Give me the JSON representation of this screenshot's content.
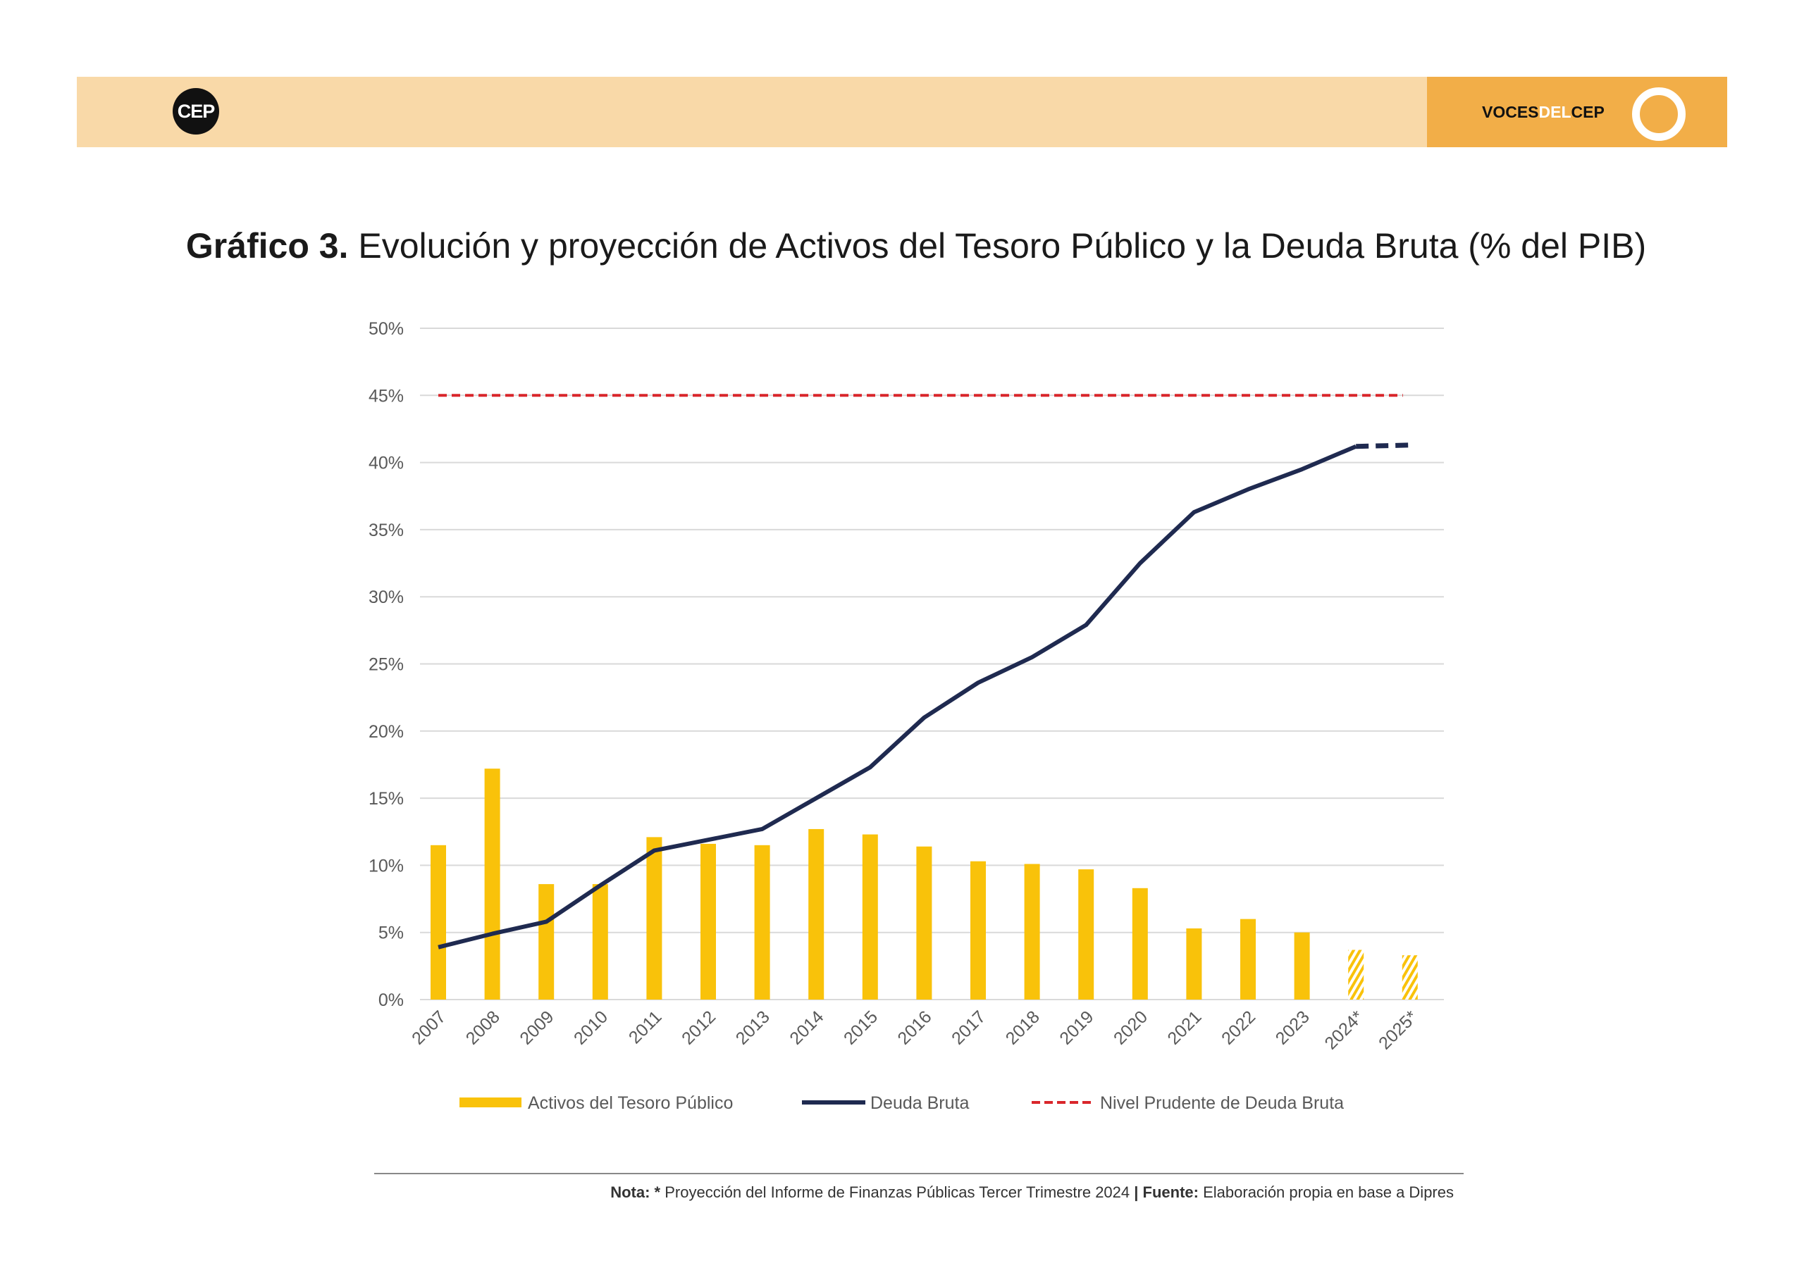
{
  "header": {
    "logo_text": "CEP",
    "brand_part1": "VOCES",
    "brand_part2": "DEL",
    "brand_part3": "CEP",
    "band_color": "#f9d9a8",
    "brand_color": "#f2ae48"
  },
  "title": {
    "label": "Gráfico 3.",
    "text": "Evolución y proyección de Activos del Tesoro Público y la Deuda Bruta (% del PIB)"
  },
  "chart_data": {
    "type": "bar+line",
    "categories": [
      "2007",
      "2008",
      "2009",
      "2010",
      "2011",
      "2012",
      "2013",
      "2014",
      "2015",
      "2016",
      "2017",
      "2018",
      "2019",
      "2020",
      "2021",
      "2022",
      "2023",
      "2024*",
      "2025*"
    ],
    "yticks": [
      "0%",
      "5%",
      "10%",
      "15%",
      "20%",
      "25%",
      "30%",
      "35%",
      "40%",
      "45%",
      "50%"
    ],
    "ylim": [
      0,
      50
    ],
    "grid": true,
    "legend_position": "bottom",
    "series": [
      {
        "name": "Activos del Tesoro Público",
        "type": "bar",
        "color": "#f9c20a",
        "values": [
          11.5,
          17.2,
          8.6,
          8.6,
          12.1,
          11.6,
          11.5,
          12.7,
          12.3,
          11.4,
          10.3,
          10.1,
          9.7,
          8.3,
          5.3,
          6.0,
          5.0,
          3.7,
          3.3
        ],
        "projected_from": "2024*"
      },
      {
        "name": "Deuda Bruta",
        "type": "line",
        "color": "#1f2a50",
        "values": [
          3.9,
          4.9,
          5.8,
          8.5,
          11.1,
          11.9,
          12.7,
          15.0,
          17.3,
          21.0,
          23.6,
          25.5,
          27.9,
          32.5,
          36.3,
          38.0,
          39.5,
          41.2,
          41.3
        ],
        "projected_from": "2024*"
      },
      {
        "name": "Nivel Prudente de Deuda Bruta",
        "type": "line",
        "style": "dashed",
        "color": "#d9262b",
        "values": [
          45,
          45,
          45,
          45,
          45,
          45,
          45,
          45,
          45,
          45,
          45,
          45,
          45,
          45,
          45,
          45,
          45,
          45,
          45
        ]
      }
    ]
  },
  "footer": {
    "nota_label": "Nota: *",
    "nota_text": " Proyección del Informe de Finanzas Públicas Tercer Trimestre 2024 ",
    "fuente_label": "| Fuente:",
    "fuente_text": " Elaboración propia en base a Dipres"
  }
}
